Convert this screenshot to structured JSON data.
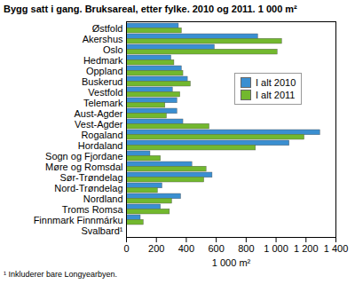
{
  "chart_data": {
    "type": "bar",
    "orientation": "horizontal",
    "title": "Bygg satt i gang. Bruksareal, etter fylke. 2010 og 2011. 1 000 m²",
    "caption": "¹ Inkluderer bare Longyearbyen.",
    "xlabel": "1 000 m²",
    "categories": [
      "Østfold",
      "Akershus",
      "Oslo",
      "Hedmark",
      "Oppland",
      "Buskerud",
      "Vestfold",
      "Telemark",
      "Aust-Agder",
      "Vest-Agder",
      "Rogaland",
      "Hordaland",
      "Sogn og Fjordane",
      "Møre og Romsdal",
      "Sør-Trøndelag",
      "Nord-Trøndelag",
      "Nordland",
      "Troms Romsa",
      "Finnmark Finnmárku",
      "Svalbard¹"
    ],
    "series": [
      {
        "name": "I alt 2010",
        "color": "#3a8fd1",
        "values": [
          350,
          880,
          590,
          300,
          370,
          410,
          310,
          340,
          340,
          380,
          1295,
          1090,
          160,
          440,
          575,
          240,
          365,
          230,
          95,
          0
        ]
      },
      {
        "name": "I alt 2011",
        "color": "#72b82e",
        "values": [
          370,
          1040,
          1010,
          320,
          380,
          430,
          360,
          260,
          270,
          555,
          1190,
          865,
          230,
          535,
          520,
          210,
          305,
          290,
          115,
          0
        ]
      }
    ],
    "xlim": [
      0,
      1400
    ],
    "xticks": [
      0,
      200,
      400,
      600,
      800,
      {
        "value": 1000,
        "label": "1 000"
      },
      {
        "value": 1200,
        "label": "1 200"
      },
      {
        "value": 1400,
        "label": "1 400"
      }
    ],
    "grid": false,
    "legend": "right"
  }
}
